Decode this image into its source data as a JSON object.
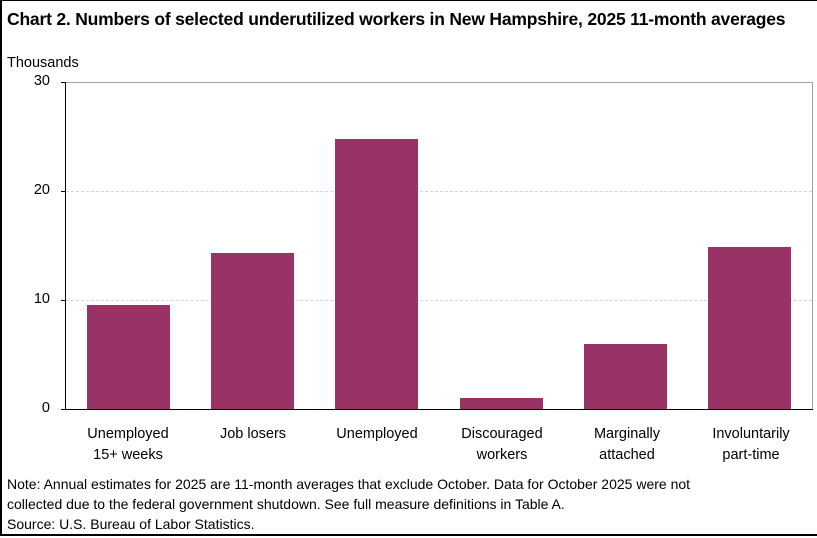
{
  "chart_data": {
    "type": "bar",
    "title": "Chart 2. Numbers of selected underutilized workers in New Hampshire, 2025 11-month averages",
    "xlabel": "",
    "ylabel": "Thousands",
    "ylim": [
      0,
      30
    ],
    "yticks": [
      "0",
      "10",
      "20",
      "30"
    ],
    "grid": true,
    "legend": null,
    "categories": [
      "Unemployed 15+ weeks",
      "Job losers",
      "Unemployed",
      "Discouraged workers",
      "Marginally attached",
      "Involuntarily part-time"
    ],
    "category_lines": [
      [
        "Unemployed",
        "15+ weeks"
      ],
      [
        "Job losers",
        ""
      ],
      [
        "Unemployed",
        ""
      ],
      [
        "Discouraged",
        "workers"
      ],
      [
        "Marginally",
        "attached"
      ],
      [
        "Involuntarily",
        "part-time"
      ]
    ],
    "values": [
      9.5,
      14.3,
      24.8,
      1.0,
      6.0,
      14.9
    ],
    "bar_color": "#993366"
  },
  "note_lines": [
    "Note: Annual estimates for 2025 are 11-month averages that exclude October. Data for October 2025 were not",
    "collected due to the federal government shutdown. See full measure definitions in Table A.",
    "Source: U.S. Bureau of Labor Statistics."
  ]
}
